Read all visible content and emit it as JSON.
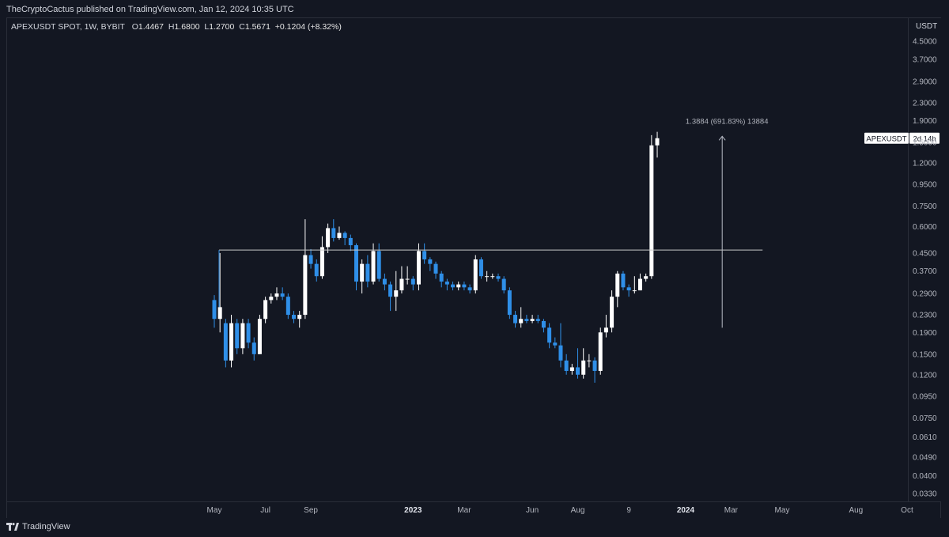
{
  "header": {
    "published": "TheCryptoCactus published on TradingView.com, Jan 12, 2024 10:35 UTC"
  },
  "legend": {
    "symbol": "APEXUSDT SPOT, 1W, BYBIT",
    "open_label": "O",
    "open": "1.4467",
    "high_label": "H",
    "high": "1.6800",
    "low_label": "L",
    "low": "1.2700",
    "close_label": "C",
    "close": "1.5671",
    "change": "+0.1204 (+8.32%)"
  },
  "price_axis": {
    "currency": "USDT",
    "symbol_tag": "APEXUSDT",
    "countdown": "2d 14h"
  },
  "measure": {
    "label": "1.3884 (691.83%) 13884"
  },
  "footer": {
    "brand": "TradingView"
  },
  "colors": {
    "background": "#131722",
    "up": "#ffffff",
    "down": "#2f8fe8",
    "grid": "#2a2e39",
    "level_line": "#c8c8c8"
  },
  "chart_data": {
    "type": "candlestick",
    "title": "APEXUSDT SPOT, 1W, BYBIT",
    "scale": "log",
    "ylim": [
      0.03,
      5.2
    ],
    "y_ticks": [
      "4.5000",
      "3.7000",
      "2.9000",
      "2.3000",
      "1.9000",
      "1.5000",
      "1.2000",
      "0.9500",
      "0.7500",
      "0.6000",
      "0.4500",
      "0.3700",
      "0.2900",
      "0.2300",
      "0.1900",
      "0.1500",
      "0.1200",
      "0.0950",
      "0.0750",
      "0.0610",
      "0.0490",
      "0.0400",
      "0.0330"
    ],
    "x_ticks": [
      {
        "label": "May",
        "week": 0
      },
      {
        "label": "Jul",
        "week": 9
      },
      {
        "label": "Sep",
        "week": 17
      },
      {
        "label": "2023",
        "week": 35,
        "bold": true
      },
      {
        "label": "Mar",
        "week": 44
      },
      {
        "label": "Jun",
        "week": 56
      },
      {
        "label": "Aug",
        "week": 64
      },
      {
        "label": "9",
        "week": 73
      },
      {
        "label": "2024",
        "week": 83,
        "bold": true
      },
      {
        "label": "Mar",
        "week": 91
      },
      {
        "label": "May",
        "week": 100
      },
      {
        "label": "Aug",
        "week": 113
      },
      {
        "label": "Oct",
        "week": 122
      }
    ],
    "resistance_level": 0.465,
    "resistance_from_week": 0,
    "resistance_to_week": 96,
    "measure_start_price": 0.2,
    "measure_end_price": 1.6,
    "measure_week": 90,
    "candles": [
      [
        0.27,
        0.22,
        0.285,
        0.2
      ],
      [
        0.22,
        0.25,
        0.45,
        0.19
      ],
      [
        0.21,
        0.14,
        0.22,
        0.13
      ],
      [
        0.14,
        0.21,
        0.23,
        0.13
      ],
      [
        0.21,
        0.16,
        0.22,
        0.15
      ],
      [
        0.16,
        0.21,
        0.22,
        0.15
      ],
      [
        0.21,
        0.17,
        0.22,
        0.16
      ],
      [
        0.17,
        0.15,
        0.18,
        0.14
      ],
      [
        0.15,
        0.22,
        0.23,
        0.15
      ],
      [
        0.22,
        0.27,
        0.28,
        0.21
      ],
      [
        0.27,
        0.28,
        0.29,
        0.26
      ],
      [
        0.28,
        0.29,
        0.31,
        0.27
      ],
      [
        0.29,
        0.28,
        0.31,
        0.27
      ],
      [
        0.28,
        0.23,
        0.29,
        0.22
      ],
      [
        0.23,
        0.22,
        0.24,
        0.21
      ],
      [
        0.22,
        0.23,
        0.24,
        0.2
      ],
      [
        0.23,
        0.44,
        0.65,
        0.22
      ],
      [
        0.44,
        0.4,
        0.47,
        0.38
      ],
      [
        0.4,
        0.35,
        0.42,
        0.33
      ],
      [
        0.35,
        0.48,
        0.54,
        0.34
      ],
      [
        0.48,
        0.59,
        0.62,
        0.45
      ],
      [
        0.59,
        0.53,
        0.65,
        0.51
      ],
      [
        0.53,
        0.56,
        0.6,
        0.52
      ],
      [
        0.56,
        0.53,
        0.57,
        0.49
      ],
      [
        0.53,
        0.49,
        0.55,
        0.46
      ],
      [
        0.49,
        0.33,
        0.5,
        0.3
      ],
      [
        0.33,
        0.4,
        0.42,
        0.29
      ],
      [
        0.4,
        0.33,
        0.44,
        0.31
      ],
      [
        0.33,
        0.46,
        0.5,
        0.32
      ],
      [
        0.46,
        0.34,
        0.5,
        0.33
      ],
      [
        0.34,
        0.32,
        0.36,
        0.3
      ],
      [
        0.32,
        0.28,
        0.33,
        0.24
      ],
      [
        0.28,
        0.3,
        0.37,
        0.24
      ],
      [
        0.3,
        0.34,
        0.39,
        0.29
      ],
      [
        0.34,
        0.34,
        0.39,
        0.32
      ],
      [
        0.34,
        0.32,
        0.35,
        0.3
      ],
      [
        0.32,
        0.46,
        0.5,
        0.3
      ],
      [
        0.46,
        0.42,
        0.5,
        0.4
      ],
      [
        0.42,
        0.4,
        0.43,
        0.37
      ],
      [
        0.4,
        0.36,
        0.41,
        0.34
      ],
      [
        0.36,
        0.33,
        0.37,
        0.31
      ],
      [
        0.33,
        0.32,
        0.34,
        0.3
      ],
      [
        0.32,
        0.31,
        0.33,
        0.3
      ],
      [
        0.31,
        0.32,
        0.33,
        0.3
      ],
      [
        0.32,
        0.31,
        0.33,
        0.3
      ],
      [
        0.31,
        0.3,
        0.32,
        0.29
      ],
      [
        0.3,
        0.42,
        0.44,
        0.29
      ],
      [
        0.42,
        0.35,
        0.43,
        0.34
      ],
      [
        0.35,
        0.35,
        0.37,
        0.33
      ],
      [
        0.35,
        0.35,
        0.36,
        0.34
      ],
      [
        0.35,
        0.34,
        0.36,
        0.33
      ],
      [
        0.34,
        0.3,
        0.35,
        0.29
      ],
      [
        0.3,
        0.23,
        0.31,
        0.22
      ],
      [
        0.23,
        0.21,
        0.24,
        0.2
      ],
      [
        0.21,
        0.22,
        0.25,
        0.2
      ],
      [
        0.22,
        0.215,
        0.23,
        0.21
      ],
      [
        0.215,
        0.22,
        0.23,
        0.21
      ],
      [
        0.22,
        0.215,
        0.23,
        0.21
      ],
      [
        0.215,
        0.2,
        0.22,
        0.19
      ],
      [
        0.2,
        0.17,
        0.21,
        0.16
      ],
      [
        0.17,
        0.165,
        0.18,
        0.16
      ],
      [
        0.165,
        0.14,
        0.21,
        0.13
      ],
      [
        0.14,
        0.125,
        0.15,
        0.12
      ],
      [
        0.125,
        0.13,
        0.135,
        0.12
      ],
      [
        0.13,
        0.12,
        0.16,
        0.115
      ],
      [
        0.12,
        0.14,
        0.16,
        0.115
      ],
      [
        0.14,
        0.14,
        0.15,
        0.13
      ],
      [
        0.14,
        0.125,
        0.145,
        0.11
      ],
      [
        0.125,
        0.19,
        0.2,
        0.12
      ],
      [
        0.19,
        0.2,
        0.23,
        0.18
      ],
      [
        0.2,
        0.28,
        0.3,
        0.19
      ],
      [
        0.28,
        0.36,
        0.37,
        0.25
      ],
      [
        0.36,
        0.31,
        0.37,
        0.3
      ],
      [
        0.31,
        0.3,
        0.32,
        0.28
      ],
      [
        0.3,
        0.3,
        0.35,
        0.29
      ],
      [
        0.3,
        0.34,
        0.36,
        0.3
      ],
      [
        0.34,
        0.35,
        0.36,
        0.33
      ],
      [
        0.35,
        1.45,
        1.62,
        0.34
      ],
      [
        1.45,
        1.567,
        1.68,
        1.27
      ]
    ]
  }
}
